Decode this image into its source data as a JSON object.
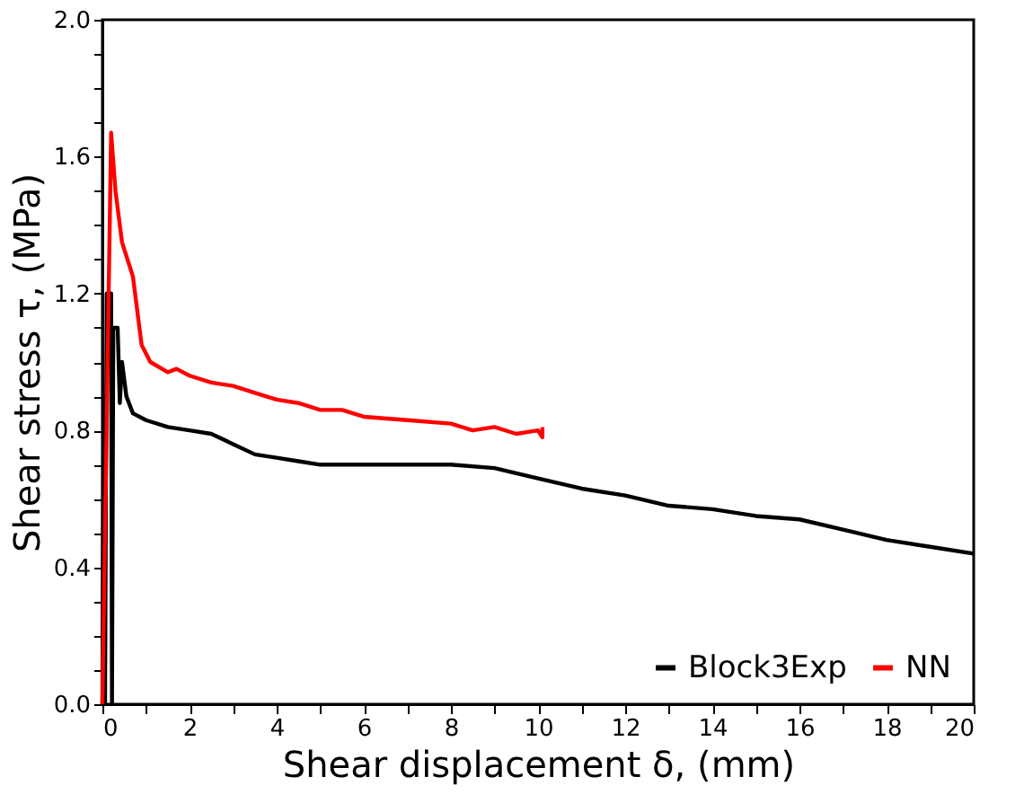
{
  "chart_data": {
    "type": "line",
    "xlabel": "Shear displacement δ, (mm)",
    "ylabel": "Shear stress τ, (MPa)",
    "xlim": [
      0,
      20
    ],
    "ylim": [
      0,
      2.0
    ],
    "xticks": [
      0,
      {
        "value": 1,
        "label": null
      },
      2,
      {
        "value": 3,
        "label": null
      },
      4,
      {
        "value": 5,
        "label": null
      },
      6,
      {
        "value": 7,
        "label": null
      },
      8,
      {
        "value": 9,
        "label": null
      },
      10,
      {
        "value": 11,
        "label": null
      },
      12,
      {
        "value": 13,
        "label": null
      },
      14,
      {
        "value": 15,
        "label": null
      },
      16,
      {
        "value": 17,
        "label": null
      },
      18,
      {
        "value": 19,
        "label": null
      },
      20
    ],
    "yticks": [
      {
        "value": 0,
        "label": "0.0"
      },
      {
        "value": 0.1,
        "label": null
      },
      {
        "value": 0.2,
        "label": null
      },
      {
        "value": 0.3,
        "label": null
      },
      0.4,
      {
        "value": 0.5,
        "label": null
      },
      {
        "value": 0.6,
        "label": null
      },
      {
        "value": 0.7,
        "label": null
      },
      0.8,
      {
        "value": 0.9,
        "label": null
      },
      {
        "value": 1.0,
        "label": null
      },
      {
        "value": 1.1,
        "label": null
      },
      1.2,
      {
        "value": 1.3,
        "label": null
      },
      {
        "value": 1.4,
        "label": null
      },
      {
        "value": 1.5,
        "label": null
      },
      1.6,
      {
        "value": 1.7,
        "label": null
      },
      {
        "value": 1.8,
        "label": null
      },
      {
        "value": 1.9,
        "label": null
      },
      {
        "value": 2.0,
        "label": "2.0"
      }
    ],
    "grid": false,
    "legend": "bottom right",
    "marker": "none",
    "line_style": "solid",
    "series": [
      {
        "name": "Block3Exp",
        "color": "#000000",
        "x": [
          0,
          0.03,
          0.06,
          0.1,
          0.2,
          0.22,
          0.25,
          0.35,
          0.4,
          0.45,
          0.55,
          0.7,
          1,
          1.5,
          2,
          2.5,
          3,
          3.5,
          4,
          4.5,
          5,
          6,
          7,
          8,
          9,
          10,
          11,
          12,
          13,
          14,
          15,
          16,
          17,
          18,
          19,
          20
        ],
        "values": [
          0,
          0.9,
          0,
          1.2,
          1.2,
          0,
          1.1,
          1.1,
          0.88,
          1.0,
          0.9,
          0.85,
          0.83,
          0.81,
          0.8,
          0.79,
          0.76,
          0.73,
          0.72,
          0.71,
          0.7,
          0.7,
          0.7,
          0.7,
          0.69,
          0.66,
          0.63,
          0.61,
          0.58,
          0.57,
          0.55,
          0.54,
          0.51,
          0.48,
          0.46,
          0.44
        ]
      },
      {
        "name": "NN",
        "color": "#ff0000",
        "x": [
          0,
          0.2,
          0.3,
          0.45,
          0.7,
          0.9,
          1.1,
          1.5,
          1.7,
          2,
          2.5,
          3,
          3.5,
          4,
          4.5,
          5,
          5.5,
          6,
          7,
          8,
          8.5,
          9,
          9.5,
          10,
          10.1,
          10.1
        ],
        "values": [
          0,
          1.67,
          1.5,
          1.35,
          1.25,
          1.05,
          1.0,
          0.97,
          0.98,
          0.96,
          0.94,
          0.93,
          0.91,
          0.89,
          0.88,
          0.86,
          0.86,
          0.84,
          0.83,
          0.82,
          0.8,
          0.81,
          0.79,
          0.8,
          0.78,
          0.81
        ]
      }
    ]
  }
}
